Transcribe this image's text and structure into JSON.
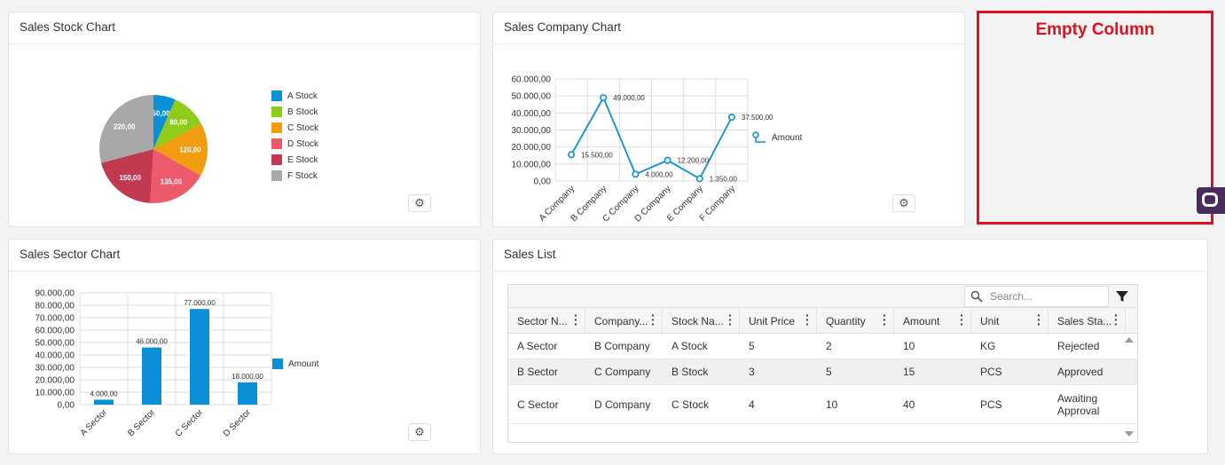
{
  "stock_card": {
    "title": "Sales Stock Chart",
    "chart_data": {
      "type": "pie",
      "categories": [
        "A Stock",
        "B Stock",
        "C Stock",
        "D Stock",
        "E Stock",
        "F Stock"
      ],
      "values": [
        50,
        80,
        120,
        135,
        150,
        220
      ],
      "value_labels": [
        "50,00",
        "80,00",
        "120,00",
        "135,00",
        "150,00",
        "220,00"
      ],
      "colors": [
        "#0b8fd6",
        "#8fcc1a",
        "#f29c12",
        "#ed5a6b",
        "#c13a4f",
        "#a8a8a8"
      ],
      "legend": "right"
    }
  },
  "company_card": {
    "title": "Sales Company Chart",
    "chart_data": {
      "type": "line",
      "categories": [
        "A Company",
        "B Company",
        "C Company",
        "D Company",
        "E Company",
        "F Company"
      ],
      "series": [
        {
          "name": "Amount",
          "values": [
            15500,
            49000,
            4000,
            12200,
            1350,
            37500
          ],
          "value_labels": [
            "15.500,00",
            "49.000,00",
            "4.000,00",
            "12.200,00",
            "1.350,00",
            "37.500,00"
          ]
        }
      ],
      "ylim": [
        0,
        60000
      ],
      "y_ticks": [
        "0,00",
        "10.000,00",
        "20.000,00",
        "30.000,00",
        "40.000,00",
        "50.000,00",
        "60.000,00"
      ],
      "grid": true,
      "color": "#0b8fd6",
      "legend": "right"
    }
  },
  "empty_column": {
    "title": "Empty Column",
    "color": "#e0111f"
  },
  "sector_card": {
    "title": "Sales Sector Chart",
    "chart_data": {
      "type": "bar",
      "categories": [
        "A Sector",
        "B Sector",
        "C Sector",
        "D Sector"
      ],
      "series": [
        {
          "name": "Amount",
          "values": [
            4000,
            46000,
            77000,
            18000
          ],
          "value_labels": [
            "4.000,00",
            "46.000,00",
            "77.000,00",
            "18.000,00"
          ]
        }
      ],
      "ylim": [
        0,
        90000
      ],
      "y_ticks": [
        "0,00",
        "10.000,00",
        "20.000,00",
        "30.000,00",
        "40.000,00",
        "50.000,00",
        "60.000,00",
        "70.000,00",
        "80.000,00",
        "90.000,00"
      ],
      "grid": true,
      "color": "#0b8fd6",
      "legend": "right"
    }
  },
  "list_card": {
    "title": "Sales List",
    "search_placeholder": "Search...",
    "columns": [
      "Sector N...",
      "Company...",
      "Stock Na...",
      "Unit Price",
      "Quantity",
      "Amount",
      "Unit",
      "Sales Sta..."
    ],
    "rows": [
      [
        "A Sector",
        "B Company",
        "A Stock",
        "5",
        "2",
        "10",
        "KG",
        "Rejected"
      ],
      [
        "B Sector",
        "C Company",
        "B Stock",
        "3",
        "5",
        "15",
        "PCS",
        "Approved"
      ],
      [
        "C Sector",
        "D Company",
        "C Stock",
        "4",
        "10",
        "40",
        "PCS",
        "Awaiting Approval"
      ]
    ]
  }
}
